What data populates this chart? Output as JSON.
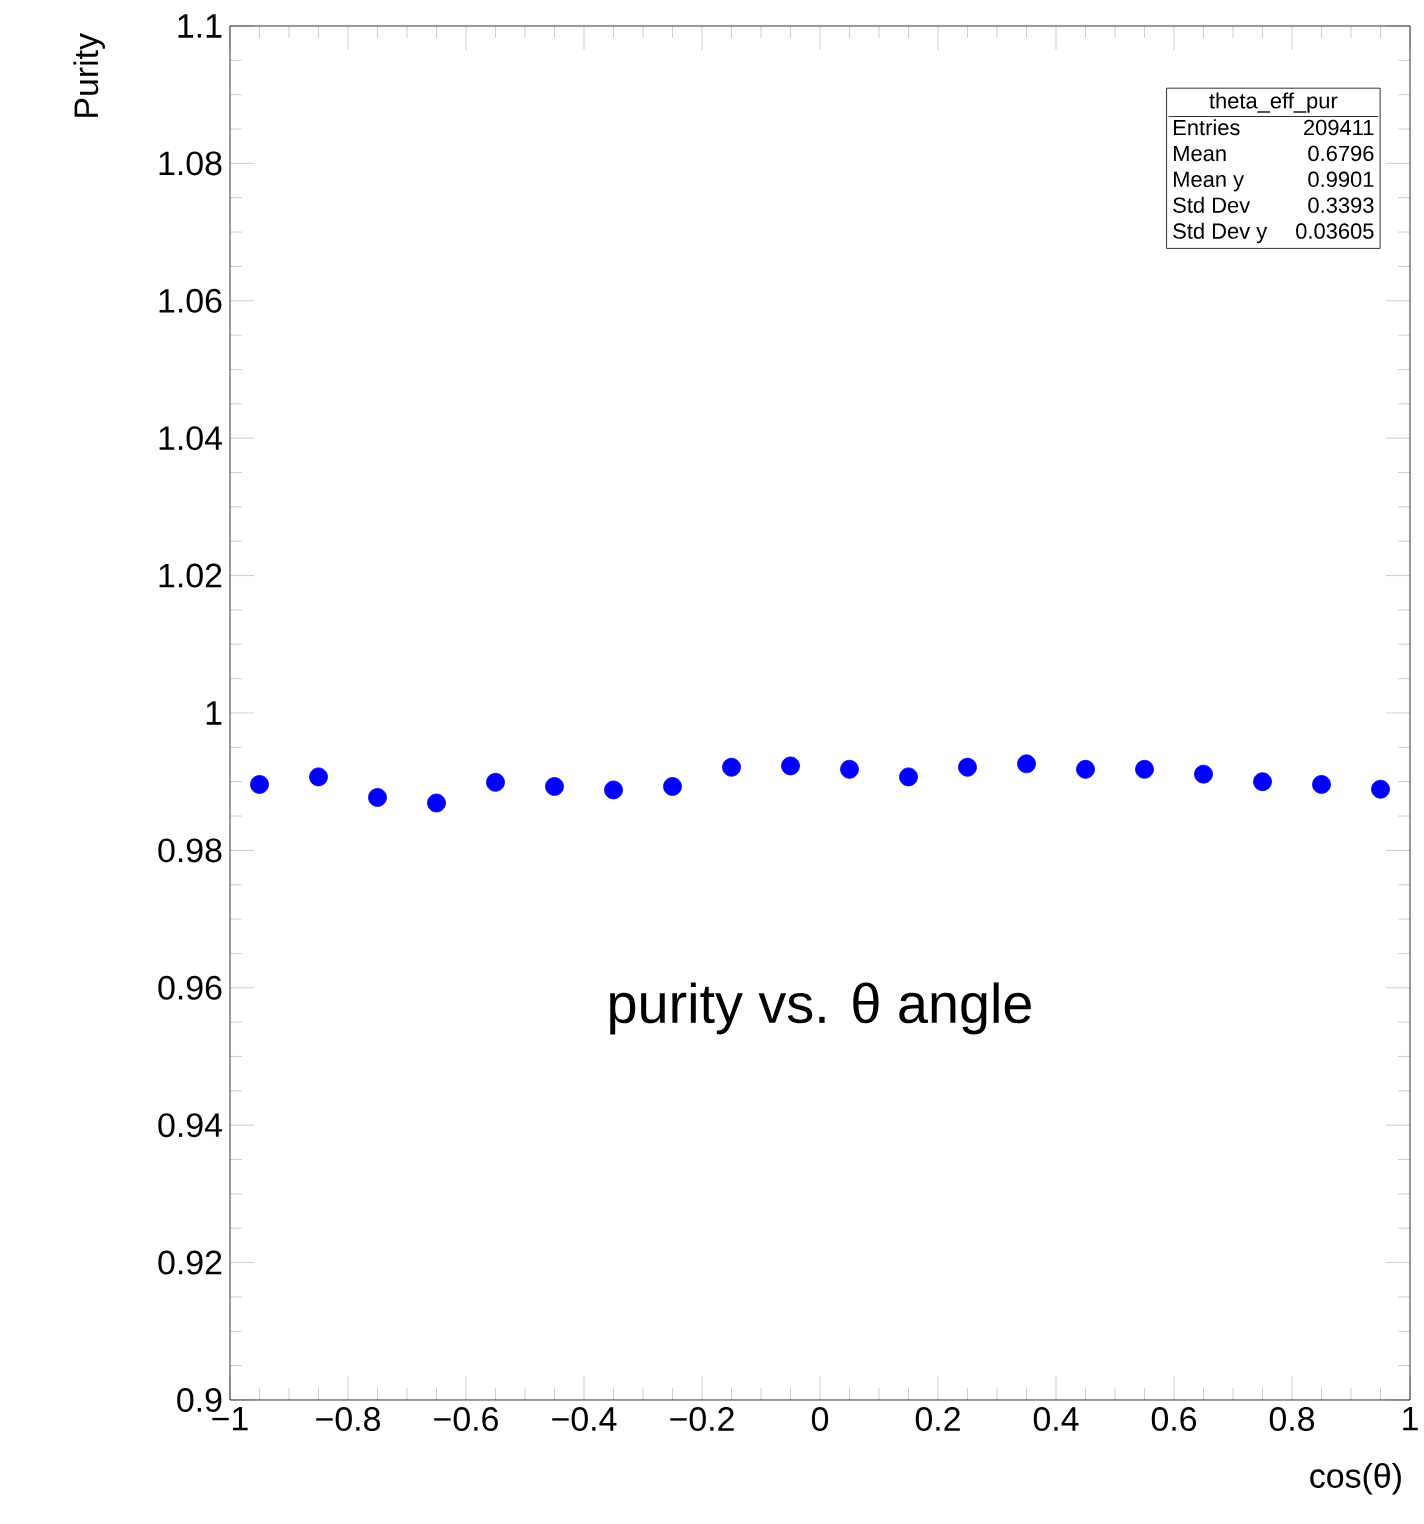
{
  "chart_data": {
    "type": "scatter",
    "xlabel": "cos(θ)",
    "ylabel": "Purity",
    "annotations": [
      "theta_eff_pur",
      "Entries",
      "209411",
      "Mean",
      "0.6796",
      "Mean y",
      "0.9901",
      "Std Dev",
      "0.3393",
      "Std Dev y",
      "0.03605",
      "purity vs. θ angle"
    ],
    "x": [
      -0.95,
      -0.85,
      -0.75,
      -0.65,
      -0.55,
      -0.45,
      -0.35,
      -0.25,
      -0.15,
      -0.05,
      0.05,
      0.15,
      0.25,
      0.35,
      0.45,
      0.55,
      0.65,
      0.75,
      0.85,
      0.95
    ],
    "series": [
      {
        "color": "#0000ff",
        "values": [
          0.9896,
          0.9907,
          0.9877,
          0.9869,
          0.9899,
          0.9893,
          0.9888,
          0.9893,
          0.9921,
          0.9923,
          0.9918,
          0.9907,
          0.9921,
          0.9926,
          0.9918,
          0.9918,
          0.9911,
          0.99,
          0.9896,
          0.9889
        ]
      }
    ],
    "marker": "circle",
    "xlim": [
      -1,
      1
    ],
    "ylim": [
      0.9,
      1.1
    ],
    "xticks": [
      {
        "value": -1,
        "label": "−1"
      },
      {
        "value": -0.8,
        "label": "−0.8"
      },
      {
        "value": -0.6,
        "label": "−0.6"
      },
      {
        "value": -0.4,
        "label": "−0.4"
      },
      {
        "value": -0.2,
        "label": "−0.2"
      },
      0,
      0.2,
      0.4,
      0.6,
      0.8,
      1
    ],
    "yticks": [
      0.9,
      0.92,
      0.94,
      0.96,
      0.98,
      1,
      1.02,
      1.04,
      1.06,
      1.08,
      1.1
    ]
  }
}
